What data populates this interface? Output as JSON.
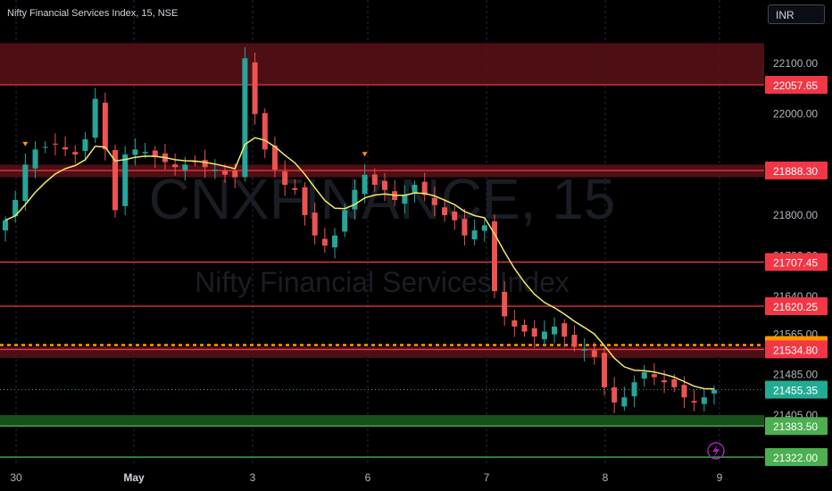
{
  "header": {
    "symbol_title": "Nifty Financial Services Index, 15, NSE",
    "currency": "INR"
  },
  "watermark": {
    "ticker": "CNXFINANCE, 15",
    "name": "Nifty Financial Services Index"
  },
  "colors": {
    "up": "#26a69a",
    "down": "#ef5350",
    "ma": "#f5e96b",
    "resistance": "#f23645",
    "support": "#4caf50",
    "dotted": "#ff9800",
    "current": "#22ab94"
  },
  "chart_data": {
    "type": "candlestick",
    "y_axis_ticks": [
      21405,
      21485,
      21565,
      21640,
      21720,
      21800,
      21890,
      22000,
      22100
    ],
    "ylim": [
      21310,
      22150
    ],
    "x_axis_labels": [
      "30",
      "May",
      "3",
      "6",
      "7",
      "8",
      "9"
    ],
    "zones": [
      {
        "from": 22057.65,
        "to": 22140,
        "kind": "resistance"
      },
      {
        "from": 21875,
        "to": 21900,
        "kind": "resistance"
      },
      {
        "from": 21518,
        "to": 21540,
        "kind": "resistance"
      },
      {
        "from": 21383.5,
        "to": 21405,
        "kind": "support"
      }
    ],
    "levels": [
      {
        "value": 22057.65,
        "label": "22057.65",
        "kind": "resistance"
      },
      {
        "value": 21888.3,
        "label": "21888.30",
        "kind": "resistance"
      },
      {
        "value": 21707.45,
        "label": "21707.45",
        "kind": "resistance"
      },
      {
        "value": 21620.25,
        "label": "21620.25",
        "kind": "resistance"
      },
      {
        "value": 21543.5,
        "label": "21543.50",
        "kind": "dotted"
      },
      {
        "value": 21534.8,
        "label": "21534.80",
        "kind": "resistance"
      },
      {
        "value": 21455.35,
        "label": "21455.35",
        "kind": "current"
      },
      {
        "value": 21383.5,
        "label": "21383.50",
        "kind": "support"
      },
      {
        "value": 21322.0,
        "label": "21322.00",
        "kind": "support"
      }
    ],
    "price_path": [
      [
        "30",
        21790
      ],
      [
        "30",
        21830
      ],
      [
        "30",
        21900
      ],
      [
        "30",
        21930
      ],
      [
        "30",
        21935
      ],
      [
        "30",
        21940
      ],
      [
        "30",
        21930
      ],
      [
        "30",
        21920
      ],
      [
        "30",
        21950
      ],
      [
        "30",
        22030
      ],
      [
        "30",
        21930
      ],
      [
        "30",
        21810
      ],
      [
        "May",
        21920
      ],
      [
        "May",
        21930
      ],
      [
        "May",
        21925
      ],
      [
        "May",
        21915
      ],
      [
        "May",
        21905
      ],
      [
        "May",
        21895
      ],
      [
        "May",
        21900
      ],
      [
        "May",
        21905
      ],
      [
        "May",
        21895
      ],
      [
        "May",
        21890
      ],
      [
        "May",
        21880
      ],
      [
        "May",
        21875
      ],
      [
        "3",
        22110
      ],
      [
        "3",
        22000
      ],
      [
        "3",
        21930
      ],
      [
        "3",
        21890
      ],
      [
        "3",
        21860
      ],
      [
        "3",
        21850
      ],
      [
        "3",
        21800
      ],
      [
        "3",
        21760
      ],
      [
        "3",
        21740
      ],
      [
        "3",
        21760
      ],
      [
        "3",
        21810
      ],
      [
        "3",
        21850
      ],
      [
        "6",
        21880
      ],
      [
        "6",
        21860
      ],
      [
        "6",
        21850
      ],
      [
        "6",
        21830
      ],
      [
        "6",
        21840
      ],
      [
        "6",
        21860
      ],
      [
        "6",
        21840
      ],
      [
        "6",
        21820
      ],
      [
        "6",
        21800
      ],
      [
        "6",
        21790
      ],
      [
        "6",
        21760
      ],
      [
        "6",
        21770
      ],
      [
        "7",
        21780
      ],
      [
        "7",
        21650
      ],
      [
        "7",
        21600
      ],
      [
        "7",
        21580
      ],
      [
        "7",
        21570
      ],
      [
        "7",
        21560
      ],
      [
        "7",
        21570
      ],
      [
        "7",
        21580
      ],
      [
        "7",
        21560
      ],
      [
        "7",
        21540
      ],
      [
        "7",
        21535
      ],
      [
        "7",
        21520
      ],
      [
        "8",
        21460
      ],
      [
        "8",
        21430
      ],
      [
        "8",
        21440
      ],
      [
        "8",
        21470
      ],
      [
        "8",
        21490
      ],
      [
        "8",
        21480
      ],
      [
        "8",
        21470
      ],
      [
        "8",
        21460
      ],
      [
        "8",
        21440
      ],
      [
        "8",
        21430
      ],
      [
        "8",
        21440
      ],
      [
        "8",
        21455
      ]
    ]
  }
}
